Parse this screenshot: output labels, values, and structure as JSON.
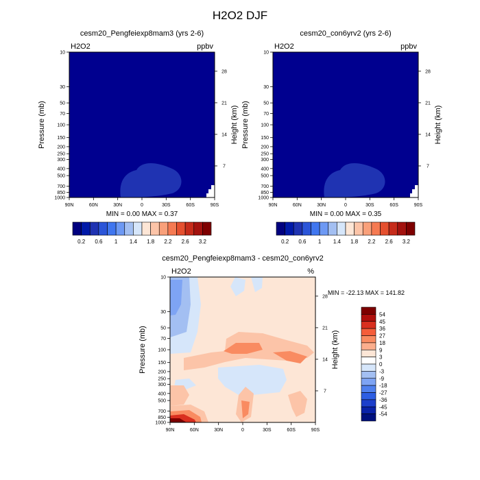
{
  "page_title": "H2O2 DJF",
  "colors": {
    "bg_dark_blue": "#00008f",
    "blob_blue": "#1f33b2",
    "diff_bg": "#fde6d6"
  },
  "chart_data": [
    {
      "type": "heatmap",
      "title": "cesm20_Pengfeiexp8mam3 (yrs 2-6)",
      "var_label": "H2O2",
      "units": "ppbv",
      "ylabel": "Pressure (mb)",
      "ylabel_right": "Height (km)",
      "x_ticks": [
        "90N",
        "60N",
        "30N",
        "0",
        "30S",
        "60S",
        "90S"
      ],
      "x_values": [
        90,
        60,
        30,
        0,
        -30,
        -60,
        -90
      ],
      "p_ticks": [
        "10",
        "30",
        "50",
        "70",
        "100",
        "150",
        "200",
        "250",
        "300",
        "400",
        "500",
        "700",
        "850",
        "1000"
      ],
      "p_values": [
        10,
        30,
        50,
        70,
        100,
        150,
        200,
        250,
        300,
        400,
        500,
        700,
        850,
        1000
      ],
      "z_ticks": [
        "28",
        "21",
        "14",
        "7"
      ],
      "z_values": [
        28,
        21,
        14,
        7
      ],
      "stats": "MIN =   0.00   MAX =   0.37"
    },
    {
      "type": "heatmap",
      "title": "cesm20_con6yrv2 (yrs 2-6)",
      "var_label": "H2O2",
      "units": "ppbv",
      "ylabel": "Pressure (mb)",
      "ylabel_right": "Height (km)",
      "x_ticks": [
        "90N",
        "60N",
        "30N",
        "0",
        "30S",
        "60S",
        "90S"
      ],
      "x_values": [
        90,
        60,
        30,
        0,
        -30,
        -60,
        -90
      ],
      "p_ticks": [
        "10",
        "30",
        "50",
        "70",
        "100",
        "150",
        "200",
        "250",
        "300",
        "400",
        "500",
        "700",
        "850",
        "1000"
      ],
      "p_values": [
        10,
        30,
        50,
        70,
        100,
        150,
        200,
        250,
        300,
        400,
        500,
        700,
        850,
        1000
      ],
      "z_ticks": [
        "28",
        "21",
        "14",
        "7"
      ],
      "z_values": [
        28,
        21,
        14,
        7
      ],
      "stats": "MIN =   0.00   MAX =   0.35"
    },
    {
      "type": "heatmap",
      "title": "cesm20_Pengfeiexp8mam3 - cesm20_con6yrv2",
      "var_label": "H2O2",
      "units": "%",
      "ylabel": "Pressure (mb)",
      "ylabel_right": "Height (km)",
      "x_ticks": [
        "90N",
        "60N",
        "30N",
        "0",
        "30S",
        "60S",
        "90S"
      ],
      "x_values": [
        90,
        60,
        30,
        0,
        -30,
        -60,
        -90
      ],
      "p_ticks": [
        "10",
        "30",
        "50",
        "70",
        "100",
        "150",
        "200",
        "250",
        "300",
        "400",
        "500",
        "700",
        "850",
        "1000"
      ],
      "p_values": [
        10,
        30,
        50,
        70,
        100,
        150,
        200,
        250,
        300,
        400,
        500,
        700,
        850,
        1000
      ],
      "z_ticks": [
        "28",
        "21",
        "14",
        "7"
      ],
      "z_values": [
        28,
        21,
        14,
        7
      ],
      "stats": "MIN = -22.13  MAX = 141.82"
    }
  ],
  "colorbar_top": {
    "colors": [
      "#00007f",
      "#0019a8",
      "#1f33b2",
      "#2b55d8",
      "#4076ef",
      "#6d99f4",
      "#a3bff2",
      "#d6e6fa",
      "#fde6d6",
      "#fcc4a8",
      "#f9a07a",
      "#f57a52",
      "#e5502f",
      "#c62b1a",
      "#a3120e",
      "#7e0000"
    ],
    "labels": [
      "0.2",
      "0.6",
      "1",
      "1.4",
      "1.8",
      "2.2",
      "2.6",
      "3.2"
    ]
  },
  "colorbar_diff": {
    "colors": [
      "#7e0000",
      "#b00f0c",
      "#d92f1f",
      "#f55d3a",
      "#f98b61",
      "#fbae8d",
      "#fde6d6",
      "#ffffff",
      "#d6e6fa",
      "#a3bff2",
      "#7ea4f4",
      "#4f80ee",
      "#2d5ee3",
      "#1d3fcb",
      "#0a22a8",
      "#00107e"
    ],
    "labels": [
      "54",
      "45",
      "36",
      "27",
      "18",
      "9",
      "3",
      "0",
      "-3",
      "-9",
      "-18",
      "-27",
      "-36",
      "-45",
      "-54"
    ]
  }
}
